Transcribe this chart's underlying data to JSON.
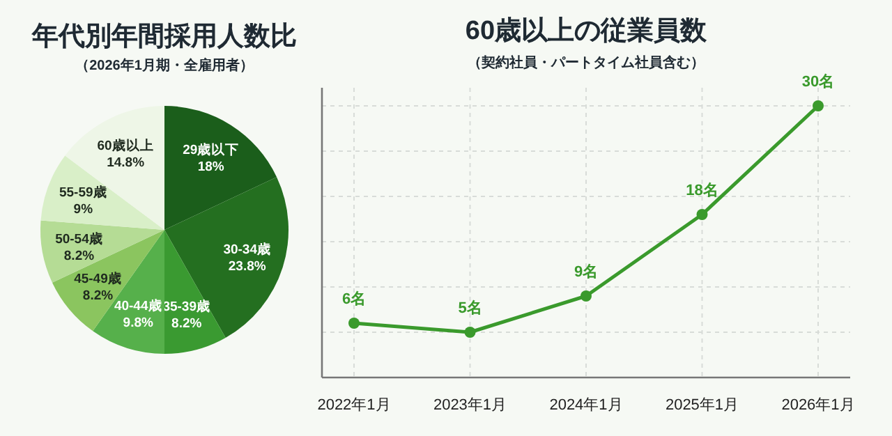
{
  "chart_data": [
    {
      "type": "pie",
      "title": "年代別年間採用人数比",
      "subtitle": "（2026年1月期・全雇用者）",
      "categories": [
        "29歳以下",
        "30-34歳",
        "35-39歳",
        "40-44歳",
        "45-49歳",
        "50-54歳",
        "55-59歳",
        "60歳以上"
      ],
      "values": [
        18,
        23.8,
        8.2,
        9.8,
        8.2,
        8.2,
        9,
        14.8
      ],
      "value_labels": [
        "18%",
        "23.8%",
        "8.2%",
        "9.8%",
        "8.2%",
        "8.2%",
        "9%",
        "14.8%"
      ],
      "colors": [
        "#1b5e1b",
        "#246f20",
        "#3a9a31",
        "#56b04b",
        "#8bc55f",
        "#b5dc95",
        "#d9efc8",
        "#eef6e7"
      ]
    },
    {
      "type": "line",
      "title": "60歳以上の従業員数",
      "subtitle": "（契約社員・パートタイム社員含む）",
      "categories": [
        "2022年1月",
        "2023年1月",
        "2024年1月",
        "2025年1月",
        "2026年1月"
      ],
      "series": [
        {
          "color": "#3a9a2c",
          "values": [
            6,
            5,
            9,
            18,
            30
          ],
          "value_labels": [
            "6名",
            "5名",
            "9名",
            "18名",
            "30名"
          ]
        }
      ],
      "ylim": [
        0,
        32
      ],
      "yticks": [
        {
          "value": 5,
          "label": null
        },
        {
          "value": 10,
          "label": null
        },
        {
          "value": 15,
          "label": null
        },
        {
          "value": 20,
          "label": null
        },
        {
          "value": 25,
          "label": null
        },
        {
          "value": 30,
          "label": null
        }
      ],
      "tick_labels": "x",
      "grid": true,
      "marker": "circle",
      "line_style": "solid"
    }
  ]
}
